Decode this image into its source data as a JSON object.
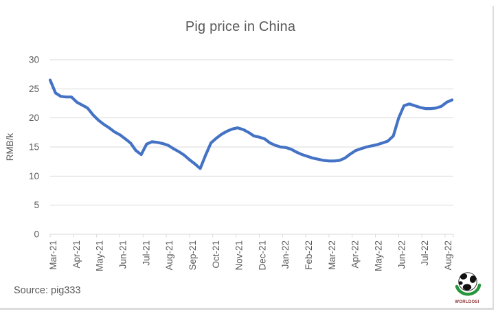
{
  "title": "Pig price in China",
  "footer": {
    "source_note": "Source: pig333"
  },
  "logo": {
    "name": "globe-logo",
    "text": "WORLDOSI"
  },
  "colors": {
    "line": "#4472C4",
    "grid": "#D9D9D9",
    "text": "#595959",
    "border": "#DCDCDC",
    "logo_swoosh": "#27963C",
    "logo_text": "#8B3333"
  },
  "chart_data": {
    "type": "line",
    "title": "Pig price in China",
    "xlabel": "",
    "ylabel": "RMB/k",
    "ylim": [
      0,
      30
    ],
    "yticks": [
      0,
      5,
      10,
      15,
      20,
      25,
      30
    ],
    "grid": true,
    "legend": false,
    "line_color": "#4472C4",
    "x_tick_labels": [
      "Mar-21",
      "Apr-21",
      "May-21",
      "Jun-21",
      "Jul-21",
      "Aug-21",
      "Sep-21",
      "Oct-21",
      "Nov-21",
      "Dec-21",
      "Jan-22",
      "Feb-22",
      "Mar-22",
      "Apr-22",
      "May-22",
      "Jun-22",
      "Jul-22",
      "Aug-22"
    ],
    "series": [
      {
        "name": "Pig price",
        "x_unit": "months since Mar-2021 (weekly samples)",
        "points": [
          [
            0,
            26.5
          ],
          [
            0.23,
            24.3
          ],
          [
            0.46,
            23.7
          ],
          [
            0.69,
            23.6
          ],
          [
            0.92,
            23.6
          ],
          [
            1.15,
            22.7
          ],
          [
            1.38,
            22.2
          ],
          [
            1.61,
            21.7
          ],
          [
            1.85,
            20.5
          ],
          [
            2.08,
            19.6
          ],
          [
            2.31,
            18.9
          ],
          [
            2.54,
            18.3
          ],
          [
            2.77,
            17.6
          ],
          [
            3,
            17.1
          ],
          [
            3.23,
            16.4
          ],
          [
            3.46,
            15.7
          ],
          [
            3.69,
            14.4
          ],
          [
            3.92,
            13.7
          ],
          [
            4.15,
            15.5
          ],
          [
            4.38,
            15.9
          ],
          [
            4.61,
            15.8
          ],
          [
            4.84,
            15.6
          ],
          [
            5.08,
            15.3
          ],
          [
            5.31,
            14.7
          ],
          [
            5.54,
            14.2
          ],
          [
            5.77,
            13.6
          ],
          [
            6,
            12.8
          ],
          [
            6.23,
            12.1
          ],
          [
            6.46,
            11.3
          ],
          [
            6.69,
            13.6
          ],
          [
            6.92,
            15.7
          ],
          [
            7.15,
            16.5
          ],
          [
            7.38,
            17.2
          ],
          [
            7.61,
            17.7
          ],
          [
            7.84,
            18.1
          ],
          [
            8.07,
            18.3
          ],
          [
            8.31,
            18
          ],
          [
            8.54,
            17.5
          ],
          [
            8.77,
            16.9
          ],
          [
            9,
            16.7
          ],
          [
            9.23,
            16.4
          ],
          [
            9.46,
            15.7
          ],
          [
            9.69,
            15.3
          ],
          [
            9.92,
            15
          ],
          [
            10.15,
            14.9
          ],
          [
            10.38,
            14.6
          ],
          [
            10.61,
            14.1
          ],
          [
            10.84,
            13.7
          ],
          [
            11.07,
            13.4
          ],
          [
            11.3,
            13.1
          ],
          [
            11.54,
            12.9
          ],
          [
            11.77,
            12.7
          ],
          [
            12,
            12.6
          ],
          [
            12.23,
            12.6
          ],
          [
            12.46,
            12.7
          ],
          [
            12.69,
            13.1
          ],
          [
            12.92,
            13.8
          ],
          [
            13.15,
            14.4
          ],
          [
            13.38,
            14.7
          ],
          [
            13.61,
            15
          ],
          [
            13.84,
            15.2
          ],
          [
            14.07,
            15.4
          ],
          [
            14.3,
            15.7
          ],
          [
            14.53,
            16
          ],
          [
            14.77,
            16.9
          ],
          [
            15,
            20
          ],
          [
            15.23,
            22.1
          ],
          [
            15.46,
            22.4
          ],
          [
            15.69,
            22.1
          ],
          [
            15.92,
            21.8
          ],
          [
            16.15,
            21.6
          ],
          [
            16.38,
            21.6
          ],
          [
            16.61,
            21.7
          ],
          [
            16.84,
            22
          ],
          [
            17.07,
            22.7
          ],
          [
            17.3,
            23.1
          ]
        ]
      }
    ]
  }
}
